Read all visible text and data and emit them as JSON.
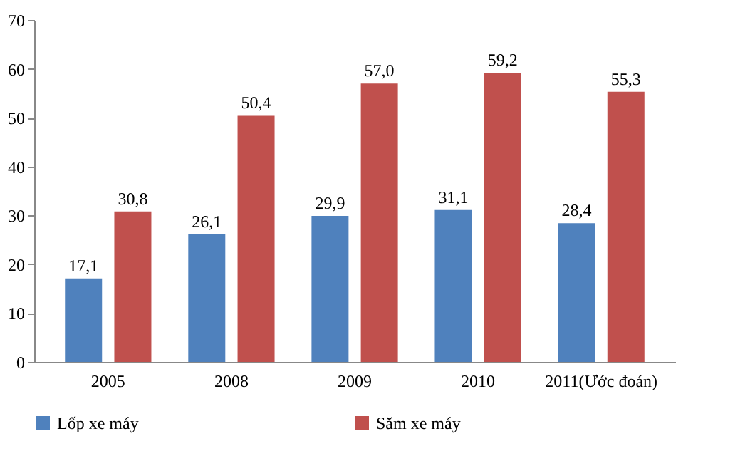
{
  "chart_data": {
    "type": "bar",
    "categories": [
      "2005",
      "2008",
      "2009",
      "2010",
      "2011(Ước đoán)"
    ],
    "series": [
      {
        "name": "Lốp xe máy",
        "color": "#4f81bd",
        "values": [
          17.1,
          26.1,
          29.9,
          31.1,
          28.4
        ],
        "value_labels": [
          "17,1",
          "26,1",
          "29,9",
          "31,1",
          "28,4"
        ]
      },
      {
        "name": "Săm xe máy",
        "color": "#c0504d",
        "values": [
          30.8,
          50.4,
          57.0,
          59.2,
          55.3
        ],
        "value_labels": [
          "30,8",
          "50,4",
          "57,0",
          "59,2",
          "55,3"
        ]
      }
    ],
    "ylim": [
      0,
      70
    ],
    "yticks": [
      0,
      10,
      20,
      30,
      40,
      50,
      60,
      70
    ],
    "grid": false,
    "legend": "bottom"
  }
}
